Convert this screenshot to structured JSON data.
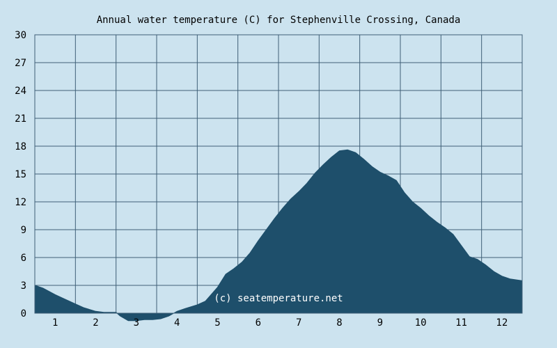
{
  "chart_data": {
    "type": "area",
    "title": "Annual water temperature (C) for Stephenville Crossing, Canada",
    "watermark": "(c) seatemperature.net",
    "xlabel": "",
    "ylabel": "",
    "xlim": [
      0.5,
      12.5
    ],
    "ylim": [
      0,
      30
    ],
    "y_ticks": [
      "0",
      "3",
      "6",
      "9",
      "12",
      "15",
      "18",
      "21",
      "24",
      "27",
      "30"
    ],
    "x_ticks": [
      "1",
      "2",
      "3",
      "4",
      "5",
      "6",
      "7",
      "8",
      "9",
      "10",
      "11",
      "12"
    ],
    "grid": true,
    "colors": {
      "background": "#cce3ef",
      "fill": "#1e4f6b",
      "grid": "#3f5f77",
      "text": "#000000",
      "watermark": "#ffffff"
    },
    "x": [
      0.5,
      0.7,
      1.0,
      1.2,
      1.5,
      1.7,
      2.0,
      2.2,
      2.5,
      2.6,
      2.8,
      3.0,
      3.2,
      3.4,
      3.6,
      3.8,
      4.0,
      4.2,
      4.5,
      4.7,
      5.0,
      5.2,
      5.4,
      5.6,
      5.8,
      6.0,
      6.2,
      6.4,
      6.6,
      6.8,
      7.0,
      7.2,
      7.4,
      7.6,
      7.8,
      8.0,
      8.2,
      8.4,
      8.6,
      8.8,
      9.0,
      9.2,
      9.4,
      9.6,
      9.8,
      10.0,
      10.2,
      10.4,
      10.6,
      10.8,
      11.0,
      11.2,
      11.4,
      11.6,
      11.8,
      12.0,
      12.2,
      12.5
    ],
    "values": [
      3.0,
      2.7,
      2.0,
      1.6,
      1.0,
      0.6,
      0.2,
      0.1,
      0.1,
      -0.3,
      -0.8,
      -0.8,
      -0.7,
      -0.7,
      -0.6,
      -0.3,
      0.2,
      0.5,
      0.9,
      1.3,
      2.8,
      4.2,
      4.8,
      5.5,
      6.5,
      7.8,
      9.0,
      10.2,
      11.3,
      12.3,
      13.1,
      14.0,
      15.1,
      16.0,
      16.8,
      17.5,
      17.6,
      17.3,
      16.6,
      15.8,
      15.2,
      14.8,
      14.3,
      13.0,
      12.0,
      11.3,
      10.5,
      9.8,
      9.2,
      8.5,
      7.3,
      6.1,
      5.8,
      5.2,
      4.5,
      4.0,
      3.7,
      3.5
    ]
  }
}
